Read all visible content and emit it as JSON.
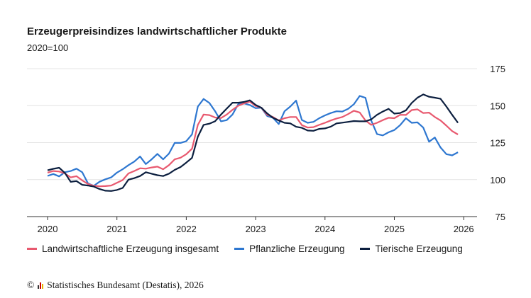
{
  "chart_data": {
    "type": "line",
    "title": "Erzeugerpreisindizes landwirtschaftlicher Produkte",
    "subtitle": "2020=100",
    "ylim": [
      75,
      175
    ],
    "yticks": [
      75,
      100,
      125,
      150,
      175
    ],
    "xticks": [
      "2020",
      "2021",
      "2022",
      "2023",
      "2024",
      "2025",
      "2026"
    ],
    "grid": true,
    "legend": "bottom",
    "x": [
      "2020-01",
      "2020-02",
      "2020-03",
      "2020-04",
      "2020-05",
      "2020-06",
      "2020-07",
      "2020-08",
      "2020-09",
      "2020-10",
      "2020-11",
      "2020-12",
      "2021-01",
      "2021-02",
      "2021-03",
      "2021-04",
      "2021-05",
      "2021-06",
      "2021-07",
      "2021-08",
      "2021-09",
      "2021-10",
      "2021-11",
      "2021-12",
      "2022-01",
      "2022-02",
      "2022-03",
      "2022-04",
      "2022-05",
      "2022-06",
      "2022-07",
      "2022-08",
      "2022-09",
      "2022-10",
      "2022-11",
      "2022-12",
      "2023-01",
      "2023-02",
      "2023-03",
      "2023-04",
      "2023-05",
      "2023-06",
      "2023-07",
      "2023-08",
      "2023-09",
      "2023-10",
      "2023-11",
      "2023-12",
      "2024-01",
      "2024-02",
      "2024-03",
      "2024-04",
      "2024-05",
      "2024-06",
      "2024-07",
      "2024-08",
      "2024-09",
      "2024-10",
      "2024-11",
      "2024-12",
      "2025-01",
      "2025-02",
      "2025-03",
      "2025-04",
      "2025-05",
      "2025-06",
      "2025-07",
      "2025-08",
      "2025-09",
      "2025-10",
      "2025-11",
      "2025-12"
    ],
    "series": [
      {
        "name": "Landwirtschaftliche Erzeugung insgesamt",
        "color": "#e8596f",
        "values": [
          104.7,
          105.8,
          105.5,
          104.2,
          101.5,
          102.3,
          99.5,
          97,
          95.8,
          95.5,
          95.6,
          96,
          97.8,
          99.7,
          104.2,
          105.8,
          107.7,
          107.4,
          108.2,
          108.8,
          107,
          109.8,
          113.7,
          114.8,
          117.2,
          120.9,
          137,
          144,
          143.6,
          142,
          141.6,
          144,
          147.2,
          150,
          151.5,
          152.7,
          149.8,
          148.6,
          143.8,
          142.3,
          140,
          141.5,
          142.3,
          142.3,
          136.8,
          135.2,
          135.5,
          137,
          138.4,
          140,
          141.3,
          142.3,
          144.3,
          146.6,
          145.4,
          140,
          137,
          138.4,
          140.2,
          141.8,
          141.5,
          143.8,
          143.7,
          147,
          147.5,
          145,
          145.3,
          142.3,
          140,
          136.5,
          132.8,
          130.5
        ]
      },
      {
        "name": "Pflanzliche Erzeugung",
        "color": "#2e77d0",
        "values": [
          102.5,
          103.8,
          102.2,
          105,
          105.8,
          107.4,
          105,
          97.4,
          95.8,
          98.6,
          100.2,
          101.5,
          104.7,
          107,
          109.8,
          112.2,
          115.6,
          110.5,
          113.7,
          117.4,
          113.7,
          117.6,
          124.8,
          124.8,
          126,
          130.6,
          149.4,
          154.5,
          151.8,
          146.2,
          139.4,
          140.2,
          144,
          151.1,
          151.5,
          150.4,
          148.3,
          148.6,
          143,
          141.8,
          137.6,
          146.2,
          149.4,
          153.4,
          140.3,
          138.4,
          139,
          141.5,
          143.4,
          145,
          146.2,
          146,
          147.8,
          151,
          156.6,
          155.3,
          140,
          130.8,
          129.9,
          132,
          133.5,
          136.8,
          141.5,
          138.4,
          138.7,
          135.2,
          125.6,
          128.5,
          121.7,
          117.2,
          116.4,
          118.5
        ]
      },
      {
        "name": "Tierische Erzeugung",
        "color": "#0c1f3f",
        "values": [
          106.3,
          107.3,
          108,
          104.5,
          98.5,
          99,
          96.5,
          96,
          95.3,
          93.6,
          92.5,
          92.3,
          93,
          94.4,
          100,
          101,
          102.4,
          105,
          104,
          103,
          102.4,
          104,
          106.6,
          108.5,
          111.5,
          114.7,
          129,
          137,
          137.8,
          139.5,
          144,
          148,
          152,
          152,
          152.5,
          153.6,
          150.5,
          148.6,
          144.7,
          141.8,
          140,
          138.4,
          138,
          135.7,
          135,
          133.2,
          133,
          134.3,
          134.6,
          135.8,
          138,
          138.5,
          139,
          139.6,
          139.4,
          139.4,
          140.7,
          143.8,
          146,
          147.8,
          144.6,
          145,
          146.8,
          151.8,
          155.4,
          157.6,
          156,
          155.4,
          154.6,
          149.4,
          143.8,
          138.4
        ]
      }
    ]
  },
  "footer": {
    "copyright_symbol": "©",
    "logo_icon": "destatis-logo",
    "source": "Statistisches Bundesamt (Destatis), 2026"
  }
}
